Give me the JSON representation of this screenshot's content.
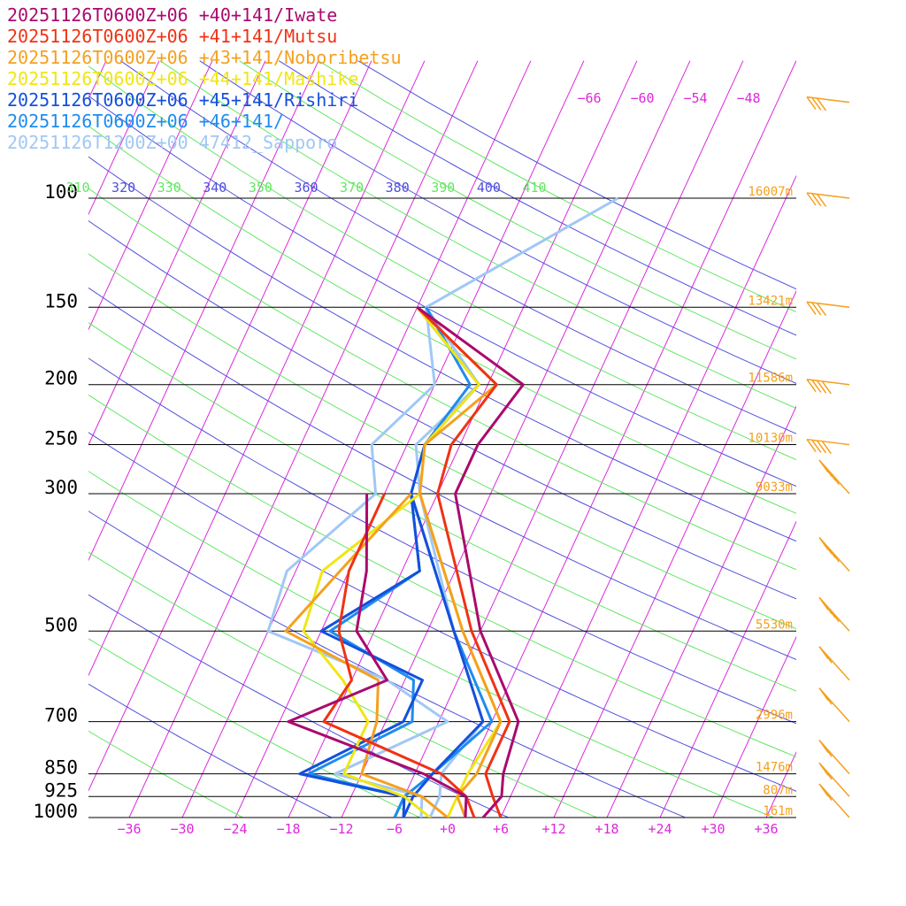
{
  "legend": [
    {
      "text": "20251126T0600Z+06 +40+141/Iwate",
      "color": "#aa0a6e"
    },
    {
      "text": "20251126T0600Z+06 +41+141/Mutsu",
      "color": "#f03214"
    },
    {
      "text": "20251126T0600Z+06 +43+141/Noboribetsu",
      "color": "#f5a01e"
    },
    {
      "text": "20251126T0600Z+06 +44+141/Mashike",
      "color": "#f0e614"
    },
    {
      "text": "20251126T0600Z+06 +45+141/Rishiri",
      "color": "#1450dc"
    },
    {
      "text": "20251126T0600Z+06 +46+141/",
      "color": "#1e8cf0"
    },
    {
      "text": "20251126T1200Z+00 47412_Sapporo",
      "color": "#a0c8f5"
    }
  ],
  "chart_data": {
    "type": "line",
    "subtype": "skew-t log-p diagram",
    "x_axis": {
      "unit": "°C",
      "ticks": [
        -36,
        -30,
        -24,
        -18,
        -12,
        -6,
        0,
        6,
        12,
        18,
        24,
        30,
        36
      ],
      "tick_labels": [
        "−36",
        "−30",
        "−24",
        "−18",
        "−12",
        "−6",
        "+0",
        "+6",
        "+12",
        "+18",
        "+24",
        "+30",
        "+36"
      ]
    },
    "y_axis": {
      "scale": "log",
      "unit": "hPa",
      "ticks": [
        100,
        150,
        200,
        250,
        300,
        500,
        700,
        850,
        925,
        1000
      ],
      "tick_labels": [
        "100",
        "150",
        "200",
        "250",
        "300",
        "500",
        "700",
        "850",
        "925",
        "1000"
      ],
      "heights": [
        "16007m",
        "13421m",
        "11586m",
        "10130m",
        "9033m",
        "5530m",
        "2996m",
        "1476m",
        "807m",
        "161m"
      ]
    },
    "upper_isotherm_labels": [
      "−66",
      "−60",
      "−54",
      "−48"
    ],
    "theta_labels": [
      {
        "text": "310",
        "color": "#64e664"
      },
      {
        "text": "320",
        "color": "#5050dc"
      },
      {
        "text": "330",
        "color": "#64e664"
      },
      {
        "text": "340",
        "color": "#5050dc"
      },
      {
        "text": "350",
        "color": "#64e664"
      },
      {
        "text": "360",
        "color": "#5050dc"
      },
      {
        "text": "370",
        "color": "#64e664"
      },
      {
        "text": "380",
        "color": "#5050dc"
      },
      {
        "text": "390",
        "color": "#64e664"
      },
      {
        "text": "400",
        "color": "#5050dc"
      },
      {
        "text": "410",
        "color": "#64e664"
      }
    ],
    "series": [
      {
        "name": "20251126T0600Z+06 +40+141/Iwate",
        "color": "#aa0a6e",
        "temperature": [
          [
            1000,
            4
          ],
          [
            925,
            5
          ],
          [
            850,
            4
          ],
          [
            700,
            3
          ],
          [
            500,
            -6
          ],
          [
            300,
            -16
          ],
          [
            250,
            -16
          ],
          [
            200,
            -14
          ],
          [
            150,
            -30
          ]
        ],
        "dewpoint": [
          [
            1000,
            2
          ],
          [
            925,
            1
          ],
          [
            850,
            -5
          ],
          [
            700,
            -23
          ],
          [
            600,
            -14
          ],
          [
            500,
            -20
          ],
          [
            400,
            -22
          ],
          [
            300,
            -26
          ]
        ]
      },
      {
        "name": "20251126T0600Z+06 +41+141/Mutsu",
        "color": "#f03214",
        "temperature": [
          [
            1000,
            6
          ],
          [
            925,
            4
          ],
          [
            850,
            2
          ],
          [
            700,
            2
          ],
          [
            500,
            -7
          ],
          [
            300,
            -18
          ],
          [
            250,
            -19
          ],
          [
            200,
            -17
          ],
          [
            150,
            -30
          ]
        ],
        "dewpoint": [
          [
            1000,
            3
          ],
          [
            925,
            1
          ],
          [
            850,
            -3
          ],
          [
            700,
            -19
          ],
          [
            600,
            -18
          ],
          [
            500,
            -22
          ],
          [
            400,
            -24
          ],
          [
            300,
            -24
          ]
        ]
      },
      {
        "name": "20251126T0600Z+06 +43+141/Noboribetsu",
        "color": "#f5a01e",
        "temperature": [
          [
            1000,
            2
          ],
          [
            925,
            0
          ],
          [
            850,
            1
          ],
          [
            700,
            1
          ],
          [
            500,
            -8
          ],
          [
            300,
            -20
          ],
          [
            250,
            -22
          ],
          [
            200,
            -17
          ],
          [
            150,
            -30
          ]
        ],
        "dewpoint": [
          [
            1000,
            0
          ],
          [
            925,
            -4
          ],
          [
            850,
            -12
          ],
          [
            700,
            -13
          ],
          [
            600,
            -15
          ],
          [
            500,
            -28
          ],
          [
            400,
            -25
          ],
          [
            300,
            -21
          ]
        ]
      },
      {
        "name": "20251126T0600Z+06 +44+141/Mashike",
        "color": "#f0e614",
        "temperature": [
          [
            1000,
            0
          ],
          [
            925,
            0
          ],
          [
            850,
            0
          ],
          [
            700,
            1
          ],
          [
            500,
            -8
          ],
          [
            300,
            -20
          ],
          [
            250,
            -22
          ],
          [
            200,
            -19
          ],
          [
            150,
            -30
          ]
        ],
        "dewpoint": [
          [
            1000,
            -2
          ],
          [
            925,
            -6
          ],
          [
            850,
            -14
          ],
          [
            700,
            -14
          ],
          [
            600,
            -19
          ],
          [
            500,
            -26
          ],
          [
            400,
            -27
          ],
          [
            300,
            -20
          ]
        ]
      },
      {
        "name": "20251126T0600Z+06 +45+141/Rishiri",
        "color": "#1450dc",
        "temperature": [
          [
            1000,
            -5
          ],
          [
            925,
            -5
          ],
          [
            850,
            -4
          ],
          [
            700,
            -1
          ],
          [
            500,
            -9
          ],
          [
            300,
            -21
          ],
          [
            250,
            -22
          ],
          [
            200,
            -19
          ],
          [
            150,
            -30
          ]
        ],
        "dewpoint": [
          [
            1000,
            -5
          ],
          [
            925,
            -6
          ],
          [
            850,
            -19
          ],
          [
            700,
            -10
          ],
          [
            600,
            -10
          ],
          [
            500,
            -24
          ],
          [
            400,
            -16
          ],
          [
            300,
            -21
          ]
        ]
      },
      {
        "name": "20251126T0600Z+06 +46+141/",
        "color": "#1e8cf0",
        "temperature": [
          [
            1000,
            -6
          ],
          [
            925,
            -6
          ],
          [
            850,
            -4
          ],
          [
            700,
            0
          ],
          [
            500,
            -9
          ],
          [
            300,
            -21
          ],
          [
            250,
            -22
          ],
          [
            200,
            -20
          ],
          [
            150,
            -29
          ]
        ],
        "dewpoint": [
          [
            1000,
            -6
          ],
          [
            925,
            -6
          ],
          [
            850,
            -18
          ],
          [
            700,
            -9
          ],
          [
            600,
            -11
          ],
          [
            500,
            -23
          ],
          [
            400,
            -16
          ],
          [
            300,
            -21
          ]
        ]
      },
      {
        "name": "20251126T1200Z+00 47412_Sapporo",
        "color": "#a0c8f5",
        "temperature": [
          [
            1000,
            -2
          ],
          [
            925,
            -2
          ],
          [
            850,
            -3
          ],
          [
            700,
            -1
          ],
          [
            500,
            -9
          ],
          [
            300,
            -20
          ],
          [
            250,
            -23
          ],
          [
            200,
            -19
          ],
          [
            150,
            -29
          ]
        ],
        "dewpoint": [
          [
            1000,
            -3
          ],
          [
            925,
            -4
          ],
          [
            850,
            -15
          ],
          [
            700,
            -5
          ],
          [
            600,
            -14
          ],
          [
            500,
            -30
          ],
          [
            400,
            -31
          ],
          [
            300,
            -25
          ],
          [
            250,
            -28
          ],
          [
            200,
            -24
          ],
          [
            150,
            -29
          ],
          [
            100,
            -13
          ]
        ]
      }
    ],
    "wind_barbs": {
      "color": "#f5a01e",
      "levels_hPa": [
        70,
        100,
        150,
        200,
        250,
        300,
        400,
        500,
        600,
        700,
        850,
        925,
        1000
      ]
    },
    "grid": true,
    "legend_position": "top-left"
  }
}
